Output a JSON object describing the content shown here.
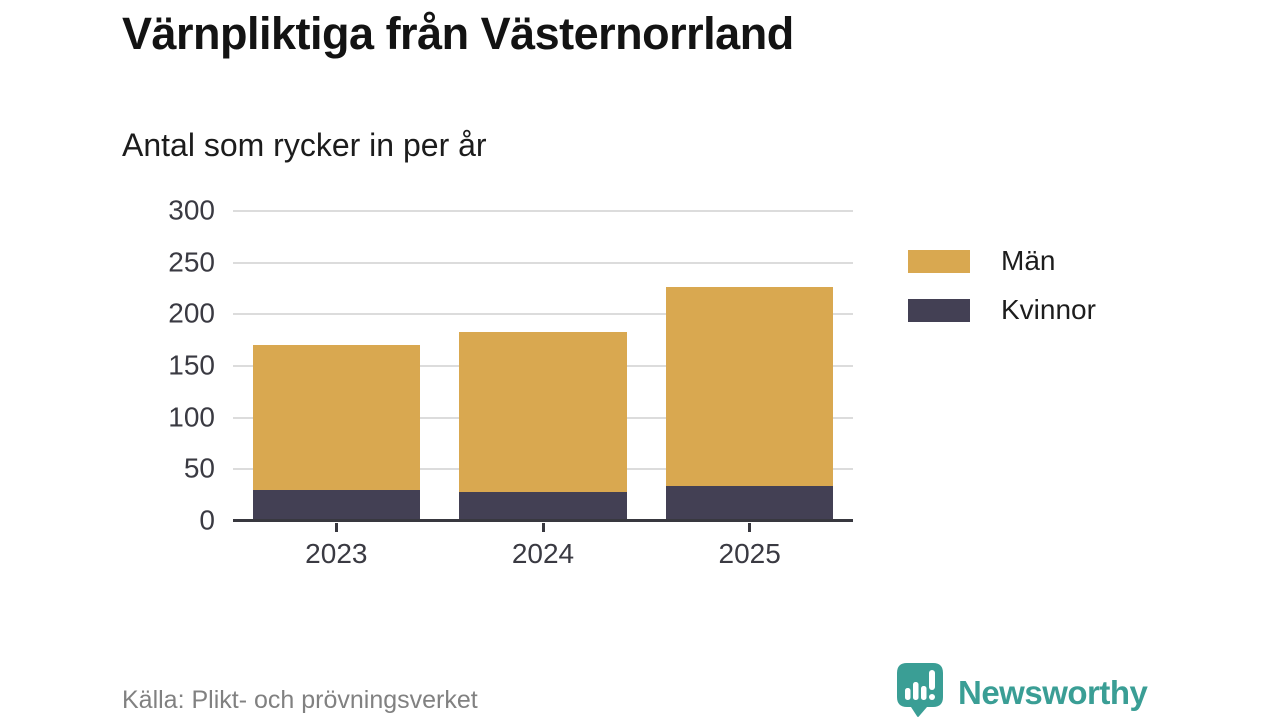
{
  "header": {
    "title": "Värnpliktiga från Västernorrland",
    "subtitle": "Antal som rycker in per år"
  },
  "chart_data": {
    "type": "bar",
    "stacked": true,
    "title": "Värnpliktiga från Västernorrland",
    "subtitle": "Antal som rycker in per år",
    "categories": [
      "2023",
      "2024",
      "2025"
    ],
    "series": [
      {
        "name": "Män",
        "color": "#D9A850",
        "values": [
          140,
          155,
          192
        ]
      },
      {
        "name": "Kvinnor",
        "color": "#434054",
        "values": [
          30,
          28,
          34
        ]
      }
    ],
    "totals": [
      170,
      183,
      226
    ],
    "stack_order_bottom_to_top": [
      "Kvinnor",
      "Män"
    ],
    "xlabel": "",
    "ylabel": "",
    "ylim": [
      0,
      300
    ],
    "yticks": [
      0,
      50,
      100,
      150,
      200,
      250,
      300
    ],
    "grid": "horizontal",
    "legend_position": "right"
  },
  "footer": {
    "source": "Källa: Plikt- och prövningsverket",
    "brand": "Newsworthy"
  },
  "colors": {
    "men": "#D9A850",
    "women": "#434054",
    "brand_teal": "#3A9E95",
    "gridline": "#DCDCDC",
    "axis": "#38383F",
    "tick_text": "#3A3A42",
    "source_text": "#818181"
  }
}
